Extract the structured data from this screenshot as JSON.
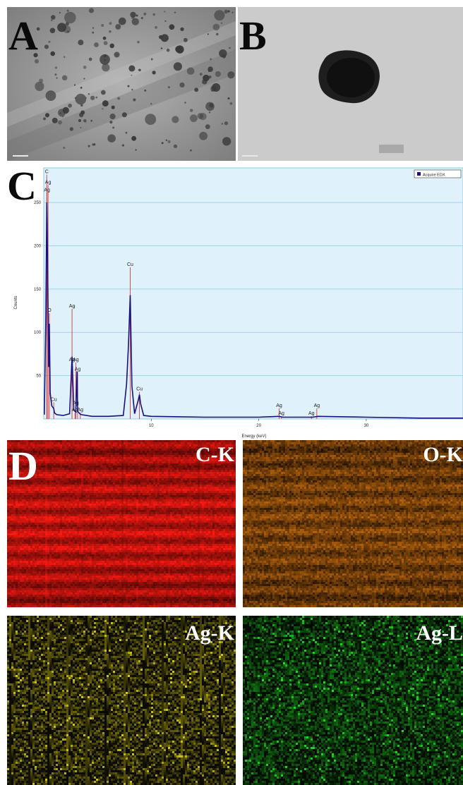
{
  "panels": {
    "a": {
      "letter": "A"
    },
    "b": {
      "letter": "B"
    },
    "c": {
      "letter": "C"
    },
    "d": {
      "letter": "D"
    }
  },
  "maps": [
    {
      "label": "C-K",
      "color": "#ff1a12"
    },
    {
      "label": "O-K",
      "color": "#e07a10"
    },
    {
      "label": "Ag-K",
      "color": "#d8cc10"
    },
    {
      "label": "Ag-L",
      "color": "#20e020"
    }
  ],
  "chart_data": {
    "type": "line",
    "title": "",
    "xlabel": "Energy (keV)",
    "ylabel": "Counts",
    "xlim": [
      0,
      39
    ],
    "ylim": [
      0,
      290
    ],
    "x_ticks": [
      10,
      20,
      30
    ],
    "y_ticks": [
      50,
      100,
      150,
      200,
      250
    ],
    "grid": true,
    "legend": {
      "position": "top-right",
      "entries": [
        "Acquire EDX"
      ]
    },
    "colors": {
      "spectrum": "#1a1080",
      "marker": "#d33b3b",
      "plot_bg": "#dff1fb",
      "grid": "#8ecbe6",
      "legend_swatch": "#1a1080"
    },
    "series": [
      {
        "name": "Acquire EDX",
        "x": [
          0.05,
          0.2,
          0.28,
          0.35,
          0.45,
          0.52,
          0.6,
          0.75,
          0.93,
          1.0,
          1.2,
          1.8,
          2.4,
          2.63,
          2.8,
          2.98,
          3.1,
          3.15,
          3.35,
          3.5,
          4.5,
          6.0,
          7.4,
          7.7,
          7.88,
          8.04,
          8.2,
          8.45,
          8.8,
          8.9,
          9.0,
          9.3,
          10.0,
          15.0,
          20.0,
          21.9,
          22.2,
          25.0,
          25.5,
          30.0,
          35.0,
          39.0
        ],
        "y": [
          5,
          120,
          250,
          190,
          60,
          110,
          30,
          15,
          12,
          7,
          5,
          4,
          6,
          72,
          10,
          8,
          55,
          9,
          6,
          5,
          3,
          3,
          4,
          40,
          85,
          143,
          38,
          6,
          22,
          28,
          18,
          4,
          3,
          2,
          2,
          3,
          2,
          2,
          3,
          2,
          1,
          1
        ]
      }
    ],
    "annotations": [
      {
        "label": "C",
        "x": 0.28,
        "y": 283
      },
      {
        "label": "Ag",
        "x": 0.4,
        "y": 271
      },
      {
        "label": "Ag",
        "x": 0.3,
        "y": 262
      },
      {
        "label": "O",
        "x": 0.52,
        "y": 123
      },
      {
        "label": "Cu",
        "x": 0.93,
        "y": 20
      },
      {
        "label": "Ag",
        "x": 2.63,
        "y": 128
      },
      {
        "label": "Ag",
        "x": 2.63,
        "y": 66
      },
      {
        "label": "Ag",
        "x": 2.98,
        "y": 66
      },
      {
        "label": "Ag",
        "x": 3.15,
        "y": 55
      },
      {
        "label": "Ag",
        "x": 2.98,
        "y": 16
      },
      {
        "label": "Ag",
        "x": 2.9,
        "y": 8
      },
      {
        "label": "Ag",
        "x": 3.4,
        "y": 8
      },
      {
        "label": "Cu",
        "x": 8.04,
        "y": 176
      },
      {
        "label": "Cu",
        "x": 8.9,
        "y": 32
      },
      {
        "label": "Ag",
        "x": 21.9,
        "y": 13
      },
      {
        "label": "Ag",
        "x": 22.1,
        "y": 4
      },
      {
        "label": "Ag",
        "x": 24.9,
        "y": 4
      },
      {
        "label": "Ag",
        "x": 25.4,
        "y": 13
      }
    ]
  }
}
